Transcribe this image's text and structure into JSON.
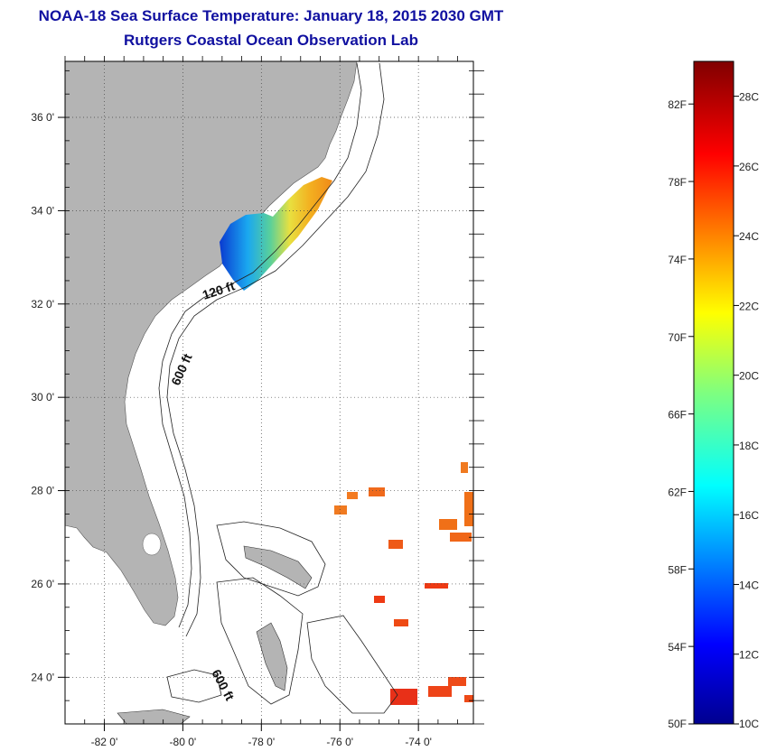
{
  "title": "NOAA-18 Sea Surface Temperature:  January 18, 2015 2030 GMT",
  "subtitle": "Rutgers Coastal Ocean Observation Lab",
  "map": {
    "lon_range": [
      -83,
      -72.6
    ],
    "lat_range": [
      23,
      37.2
    ],
    "lon_ticks": [
      {
        "value": -82,
        "label": "-82 0'"
      },
      {
        "value": -80,
        "label": "-80 0'"
      },
      {
        "value": -78,
        "label": "-78 0'"
      },
      {
        "value": -76,
        "label": "-76 0'"
      },
      {
        "value": -74,
        "label": "-74 0'"
      }
    ],
    "lat_ticks": [
      {
        "value": 36,
        "label": "36 0'"
      },
      {
        "value": 34,
        "label": "34 0'"
      },
      {
        "value": 32,
        "label": "32 0'"
      },
      {
        "value": 30,
        "label": "30 0'"
      },
      {
        "value": 28,
        "label": "28 0'"
      },
      {
        "value": 26,
        "label": "26 0'"
      },
      {
        "value": 24,
        "label": "24 0'"
      }
    ],
    "grid": "dotted",
    "land_color": "#b4b4b4",
    "isobath_labels": [
      "120 ft",
      "600 ft",
      "600 ft"
    ]
  },
  "colorbar": {
    "min_c": 10,
    "max_c": 29,
    "celsius_labels": [
      "28C",
      "26C",
      "24C",
      "22C",
      "20C",
      "18C",
      "16C",
      "14C",
      "12C",
      "10C"
    ],
    "fahrenheit_labels": [
      "82F",
      "78F",
      "74F",
      "70F",
      "66F",
      "62F",
      "58F",
      "54F",
      "50F"
    ],
    "colormap": "jet"
  }
}
